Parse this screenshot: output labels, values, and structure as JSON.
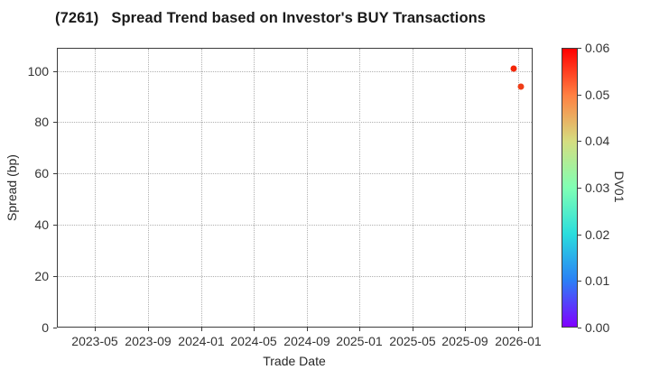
{
  "chart_data": {
    "type": "scatter",
    "title": "(7261)   Spread Trend based on Investor's BUY Transactions",
    "x_axis": {
      "label": "Trade Date",
      "ticks": [
        "2023-05",
        "2023-09",
        "2024-01",
        "2024-05",
        "2024-09",
        "2025-01",
        "2025-05",
        "2025-09",
        "2026-01"
      ],
      "range": [
        "2023-02-04",
        "2026-02-04"
      ],
      "grid": true,
      "grid_style": "dotted"
    },
    "y_axis": {
      "label": "Spread (bp)",
      "ticks": [
        0,
        20,
        40,
        60,
        80,
        100
      ],
      "range": [
        0,
        109
      ],
      "grid": true,
      "grid_style": "dotted"
    },
    "colorbar": {
      "label": "DV01",
      "ticks": [
        "0.00",
        "0.01",
        "0.02",
        "0.03",
        "0.04",
        "0.05",
        "0.06"
      ],
      "range": [
        0,
        0.06
      ],
      "colormap": "rainbow",
      "position": "right",
      "gradient_stops": [
        "#8000ff",
        "#2b80f6",
        "#2bdddd",
        "#80ffb4",
        "#d5dd80",
        "#ff8042",
        "#ff0000"
      ]
    },
    "points": [
      {
        "date": "2025-12-22",
        "spread_bp": 101,
        "dv01": 0.06,
        "color": "#f42607"
      },
      {
        "date": "2026-01-07",
        "spread_bp": 94,
        "dv01": 0.056,
        "color": "#ef3d17"
      }
    ],
    "legend": "none"
  },
  "colors": {
    "background": "#ffffff",
    "grid": "#b0b0b0",
    "spine": "#3c3c3c",
    "tick_label": "#333333",
    "title": "#1a1a1a"
  }
}
